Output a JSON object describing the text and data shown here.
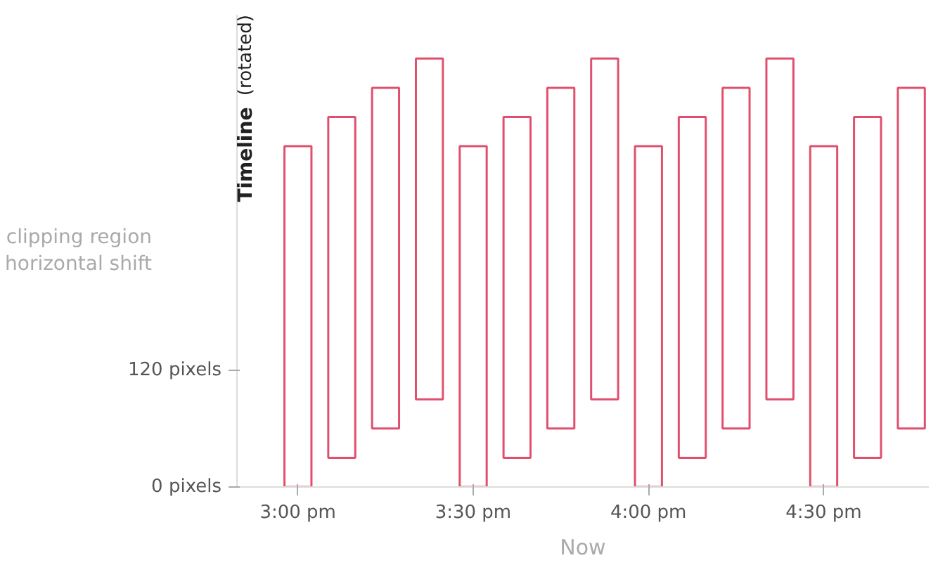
{
  "chart_data": {
    "type": "bar",
    "title": "Timeline (rotated)",
    "xlabel": "Now",
    "ylabel": "clipping region\nhorizontal shift",
    "x": [
      15.0,
      15.125,
      15.25,
      15.375,
      15.5,
      15.625,
      15.75,
      15.875,
      16.0,
      16.125,
      16.25,
      16.375,
      16.5,
      16.625,
      16.75
    ],
    "base": [
      0,
      30,
      60,
      90,
      0,
      30,
      60,
      90,
      0,
      30,
      60,
      90,
      0,
      30,
      60
    ],
    "values": [
      350,
      350,
      350,
      350,
      350,
      350,
      350,
      350,
      350,
      350,
      350,
      350,
      350,
      350,
      350
    ],
    "color": "#e0506e",
    "xlim": [
      14.826,
      16.8
    ],
    "ylim": [
      0,
      485
    ],
    "xticks": [
      {
        "value": 15.0,
        "label": "3:00 pm"
      },
      {
        "value": 15.5,
        "label": "3:30 pm"
      },
      {
        "value": 16.0,
        "label": "4:00 pm"
      },
      {
        "value": 16.5,
        "label": "4:30 pm"
      }
    ],
    "yticks": [
      {
        "value": 0,
        "label": "0 pixels"
      },
      {
        "value": 120,
        "label": "120 pixels"
      }
    ],
    "grid": false
  }
}
